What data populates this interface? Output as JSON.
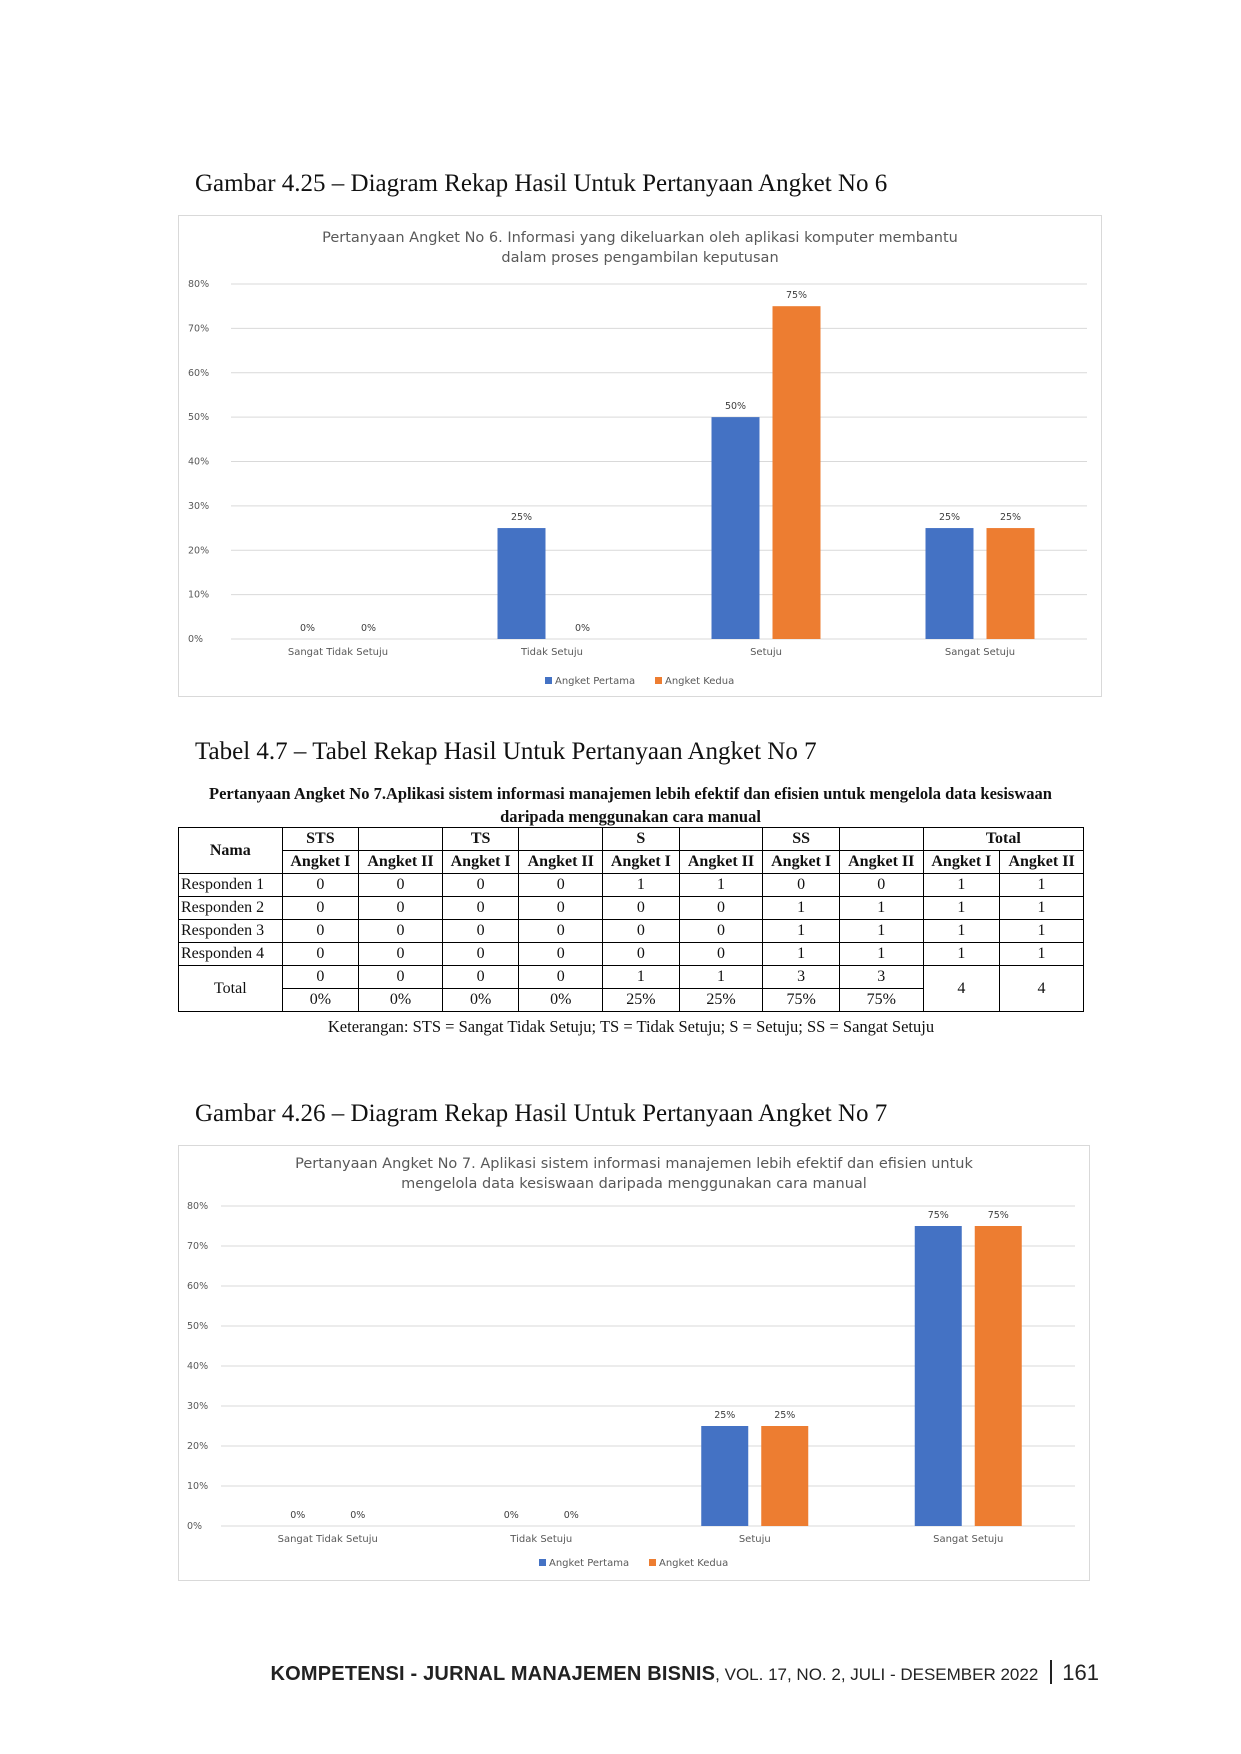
{
  "figure1": {
    "caption": "Gambar 4.25 – Diagram Rekap Hasil Untuk Pertanyaan Angket No 6"
  },
  "table": {
    "caption": "Tabel 4.7 – Tabel Rekap Hasil Untuk Pertanyaan Angket No 7",
    "title_line1": "Pertanyaan Angket No 7.Aplikasi sistem informasi manajemen lebih efektif dan efisien untuk mengelola data kesiswaan",
    "title_line2": "daripada menggunakan cara manual",
    "header_name": "Nama",
    "groups": [
      "STS",
      "TS",
      "S",
      "SS",
      "Total"
    ],
    "sub": [
      "Angket I",
      "Angket II"
    ],
    "rows": [
      {
        "name": "Responden 1",
        "values": [
          "0",
          "0",
          "0",
          "0",
          "1",
          "1",
          "0",
          "0",
          "1",
          "1"
        ]
      },
      {
        "name": "Responden 2",
        "values": [
          "0",
          "0",
          "0",
          "0",
          "0",
          "0",
          "1",
          "1",
          "1",
          "1"
        ]
      },
      {
        "name": "Responden 3",
        "values": [
          "0",
          "0",
          "0",
          "0",
          "0",
          "0",
          "1",
          "1",
          "1",
          "1"
        ]
      },
      {
        "name": "Responden 4",
        "values": [
          "0",
          "0",
          "0",
          "0",
          "0",
          "0",
          "1",
          "1",
          "1",
          "1"
        ]
      }
    ],
    "total_label": "Total",
    "total_counts": [
      "0",
      "0",
      "0",
      "0",
      "1",
      "1",
      "3",
      "3"
    ],
    "total_pcts": [
      "0%",
      "0%",
      "0%",
      "0%",
      "25%",
      "25%",
      "75%",
      "75%"
    ],
    "total_totals": [
      "4",
      "4"
    ],
    "note": "Keterangan: STS = Sangat Tidak Setuju; TS = Tidak Setuju; S = Setuju; SS = Sangat Setuju"
  },
  "figure2": {
    "caption": "Gambar 4.26 – Diagram Rekap Hasil Untuk Pertanyaan Angket No 7"
  },
  "footer": {
    "journal": "KOMPETENSI - JURNAL MANAJEMEN BISNIS",
    "volume": ", VOL. 17, NO. 2, JULI - DESEMBER 2022",
    "page": "161"
  },
  "chart_data": [
    {
      "type": "bar",
      "title_lines": [
        "Pertanyaan Angket No 6. Informasi yang dikeluarkan oleh aplikasi komputer membantu",
        "dalam proses pengambilan keputusan"
      ],
      "categories": [
        "Sangat Tidak Setuju",
        "Tidak Setuju",
        "Setuju",
        "Sangat Setuju"
      ],
      "y_ticks": [
        "0%",
        "10%",
        "20%",
        "30%",
        "40%",
        "50%",
        "60%",
        "70%",
        "80%"
      ],
      "ylim": [
        0,
        80
      ],
      "series": [
        {
          "name": "Angket Pertama",
          "color": "#4472C4",
          "values": [
            0,
            25,
            50,
            25
          ]
        },
        {
          "name": "Angket Kedua",
          "color": "#ED7D31",
          "values": [
            0,
            0,
            75,
            25
          ]
        }
      ],
      "legend": "bottom",
      "grid": true
    },
    {
      "type": "bar",
      "title_lines": [
        "Pertanyaan Angket No 7. Aplikasi sistem informasi manajemen lebih efektif dan efisien untuk",
        "mengelola data kesiswaan daripada menggunakan cara manual"
      ],
      "categories": [
        "Sangat Tidak Setuju",
        "Tidak Setuju",
        "Setuju",
        "Sangat Setuju"
      ],
      "y_ticks": [
        "0%",
        "10%",
        "20%",
        "30%",
        "40%",
        "50%",
        "60%",
        "70%",
        "80%"
      ],
      "ylim": [
        0,
        80
      ],
      "series": [
        {
          "name": "Angket Pertama",
          "color": "#4472C4",
          "values": [
            0,
            0,
            25,
            75
          ]
        },
        {
          "name": "Angket Kedua",
          "color": "#ED7D31",
          "values": [
            0,
            0,
            25,
            75
          ]
        }
      ],
      "legend": "bottom",
      "grid": true
    }
  ]
}
